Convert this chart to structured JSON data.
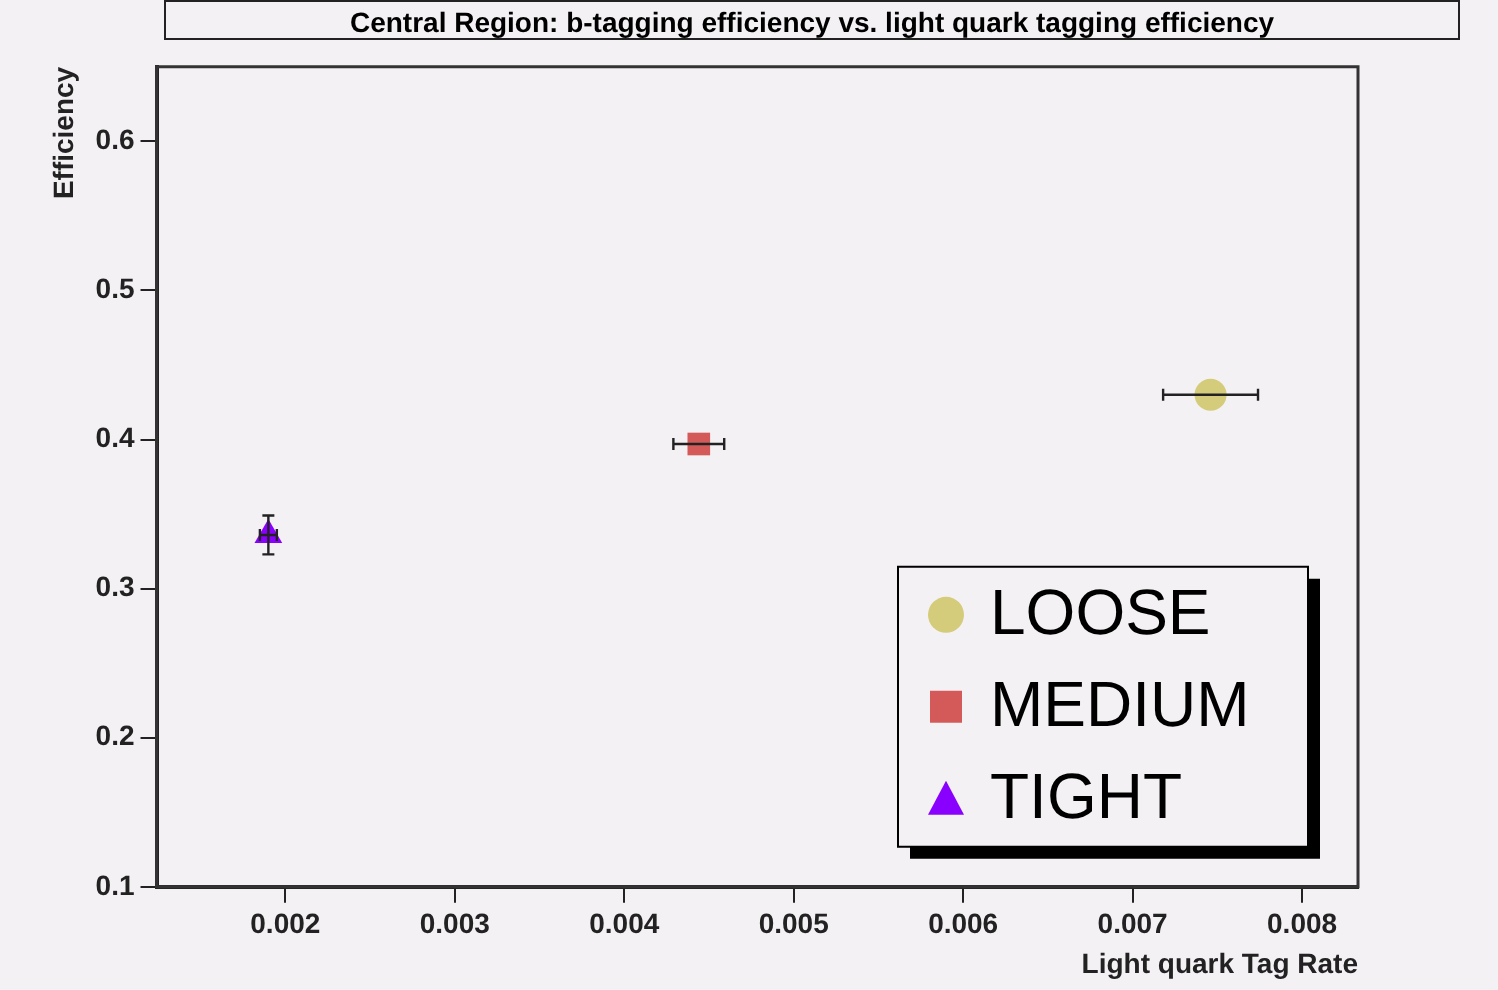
{
  "chart_data": {
    "type": "scatter",
    "title": "Central Region: b-tagging efficiency vs. light quark tagging efficiency",
    "xlabel": "Light quark Tag Rate",
    "ylabel": "Efficiency",
    "xlim": [
      0.00124,
      0.00833
    ],
    "xticks": [
      0.002,
      0.003,
      0.004,
      0.005,
      0.006,
      0.007,
      0.008
    ],
    "ylim": [
      0.1,
      0.65
    ],
    "yticks": [
      0.1,
      0.2,
      0.3,
      0.4,
      0.5,
      0.6
    ],
    "grid": false,
    "legend": "bottom right",
    "series": [
      {
        "name": "LOOSE",
        "color": "#d4cc7a",
        "marker": "circle",
        "x": [
          0.00746
        ],
        "values": [
          0.43
        ],
        "xerrors": [
          0.00028
        ]
      },
      {
        "name": "MEDIUM",
        "color": "#d45a5a",
        "marker": "square",
        "x": [
          0.00444
        ],
        "values": [
          0.397
        ],
        "xerrors": [
          0.00015
        ]
      },
      {
        "name": "TIGHT",
        "color": "#8a00ff",
        "marker": "triangle",
        "x": [
          0.0019
        ],
        "values": [
          0.336
        ],
        "xerrors": [
          5e-05
        ],
        "errors": [
          0.013
        ]
      }
    ]
  }
}
